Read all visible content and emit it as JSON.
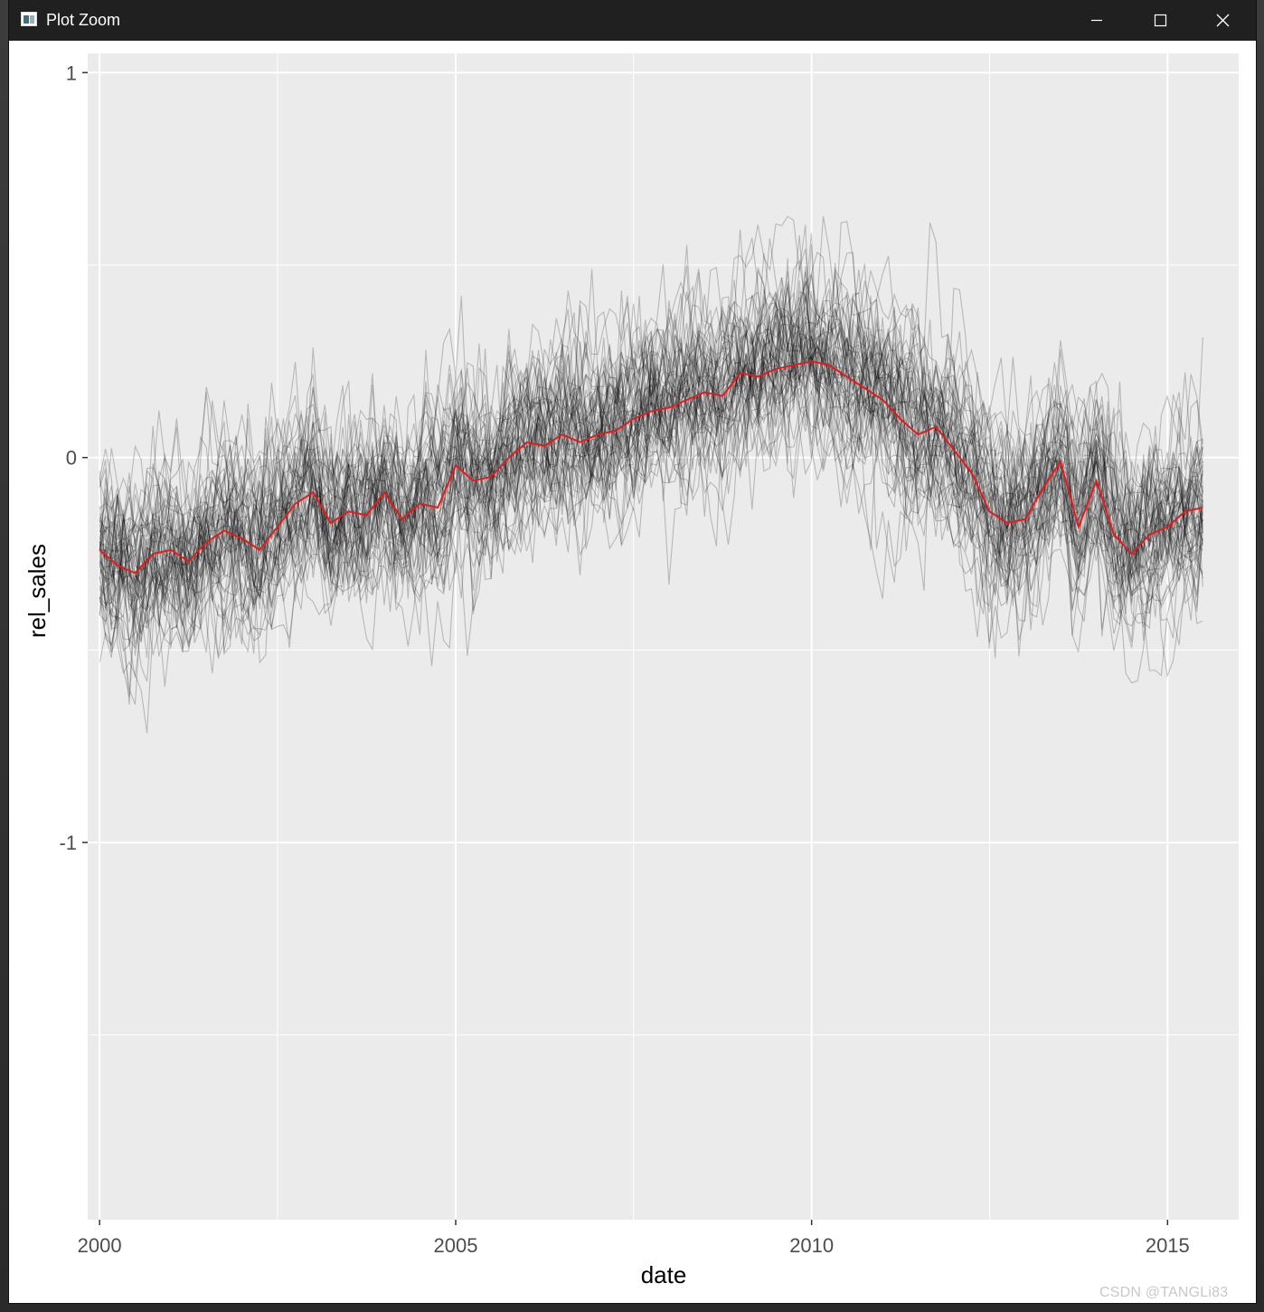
{
  "window": {
    "title": "Plot Zoom",
    "controls": [
      "minimize",
      "maximize",
      "close"
    ]
  },
  "chart_data": {
    "type": "line",
    "title": "",
    "xlabel": "date",
    "ylabel": "rel_sales",
    "xlim": [
      "1999-11-01",
      "2016-01-01"
    ],
    "ylim": [
      -1.98,
      1.05
    ],
    "x_ticks": [
      "2000",
      "2005",
      "2010",
      "2015"
    ],
    "y_ticks": [
      "1",
      "0",
      "-1"
    ],
    "grid": true,
    "legend": "none",
    "background": "#ebebeb",
    "gridline_color": "#ffffff",
    "individual_series_color": "#000000",
    "individual_series_count": 60,
    "summary_series_color": "#e41a1c",
    "summary_series": {
      "name": "",
      "x": [
        "2000-01",
        "2000-04",
        "2000-07",
        "2000-10",
        "2001-01",
        "2001-04",
        "2001-07",
        "2001-10",
        "2002-01",
        "2002-04",
        "2002-07",
        "2002-10",
        "2003-01",
        "2003-04",
        "2003-07",
        "2003-10",
        "2004-01",
        "2004-04",
        "2004-07",
        "2004-10",
        "2005-01",
        "2005-04",
        "2005-07",
        "2005-10",
        "2006-01",
        "2006-04",
        "2006-07",
        "2006-10",
        "2007-01",
        "2007-04",
        "2007-07",
        "2007-10",
        "2008-01",
        "2008-04",
        "2008-07",
        "2008-10",
        "2009-01",
        "2009-04",
        "2009-07",
        "2009-10",
        "2010-01",
        "2010-04",
        "2010-07",
        "2010-10",
        "2011-01",
        "2011-04",
        "2011-07",
        "2011-10",
        "2012-01",
        "2012-04",
        "2012-07",
        "2012-10",
        "2013-01",
        "2013-04",
        "2013-07",
        "2013-10",
        "2014-01",
        "2014-04",
        "2014-07",
        "2014-10",
        "2015-01",
        "2015-04",
        "2015-07"
      ],
      "values": [
        -0.24,
        -0.28,
        -0.3,
        -0.25,
        -0.24,
        -0.27,
        -0.22,
        -0.19,
        -0.21,
        -0.24,
        -0.18,
        -0.12,
        -0.09,
        -0.17,
        -0.14,
        -0.15,
        -0.09,
        -0.16,
        -0.12,
        -0.13,
        -0.02,
        -0.06,
        -0.05,
        0.0,
        0.04,
        0.03,
        0.06,
        0.04,
        0.06,
        0.07,
        0.1,
        0.12,
        0.13,
        0.15,
        0.17,
        0.16,
        0.22,
        0.21,
        0.23,
        0.24,
        0.25,
        0.24,
        0.21,
        0.18,
        0.15,
        0.1,
        0.06,
        0.08,
        0.02,
        -0.04,
        -0.14,
        -0.17,
        -0.16,
        -0.08,
        -0.01,
        -0.18,
        -0.06,
        -0.2,
        -0.25,
        -0.2,
        -0.18,
        -0.14,
        -0.13
      ]
    }
  },
  "watermark": "CSDN @TANGLi83"
}
